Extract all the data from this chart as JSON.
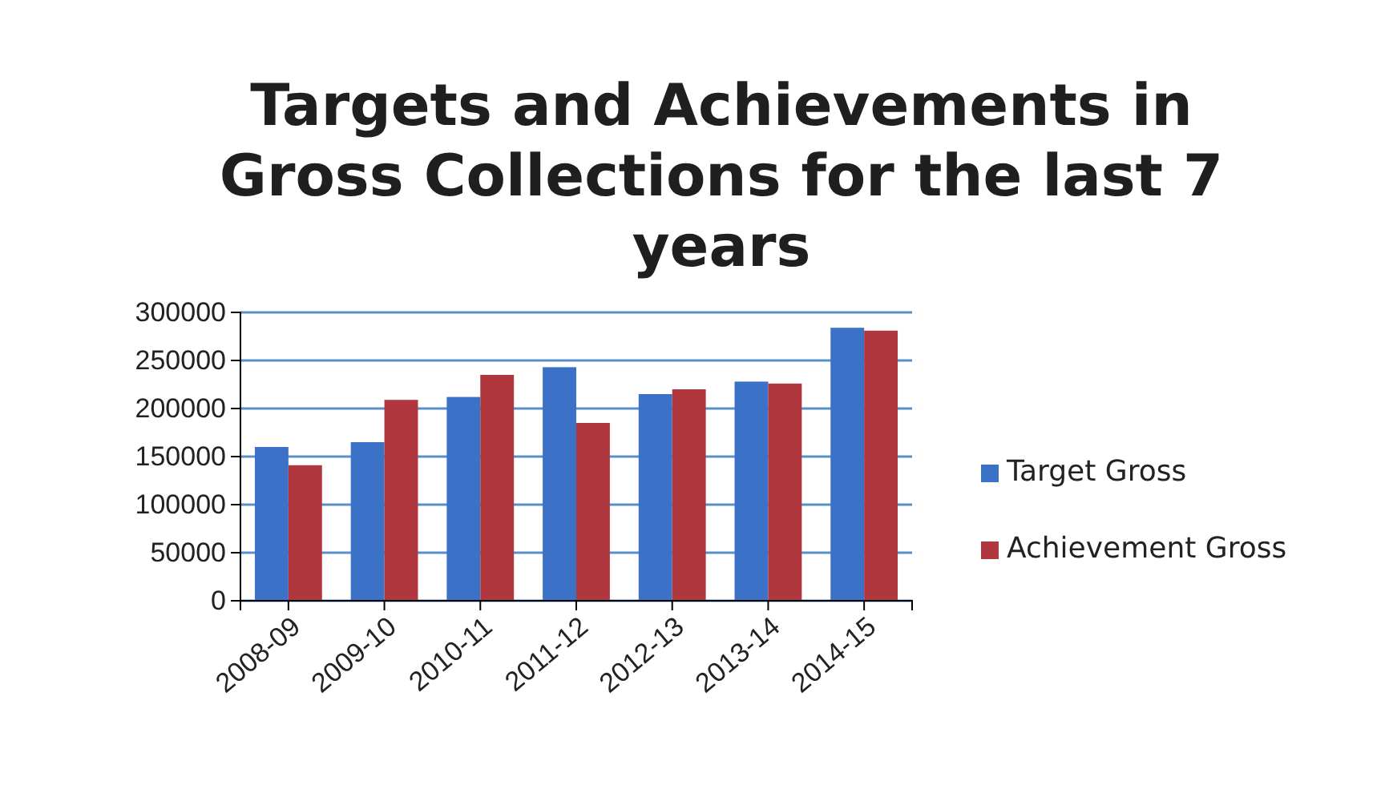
{
  "chart_data": {
    "type": "bar",
    "title": "Targets and Achievements in Gross Collections for the last 7 years",
    "categories": [
      "2008-09",
      "2009-10",
      "2010-11",
      "2011-12",
      "2012-13",
      "2013-14",
      "2014-15"
    ],
    "series": [
      {
        "name": "Target Gross",
        "color": "#3b71c6",
        "values": [
          160000,
          165000,
          212000,
          243000,
          215000,
          228000,
          284000
        ]
      },
      {
        "name": "Achievement Gross",
        "color": "#b0373d",
        "values": [
          141000,
          209000,
          235000,
          185000,
          220000,
          226000,
          281000
        ]
      }
    ],
    "ylim": [
      0,
      300000
    ],
    "yticks": [
      0,
      50000,
      100000,
      150000,
      200000,
      250000,
      300000
    ],
    "grid": "y",
    "legend": "right"
  }
}
